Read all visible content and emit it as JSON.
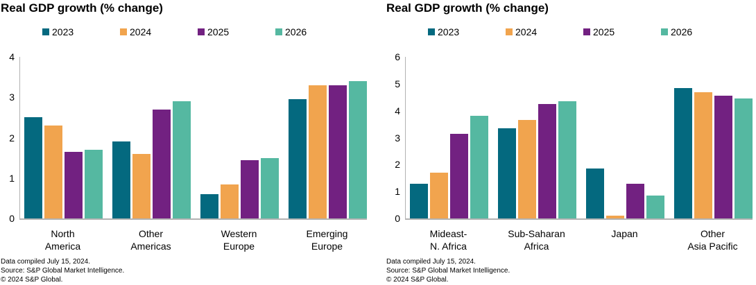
{
  "palette": {
    "axis_line": "#b2b2b2",
    "text": "#000000",
    "background": "#ffffff"
  },
  "chart_data": [
    {
      "type": "bar",
      "title": "Real GDP growth (% change)",
      "ylabel": "",
      "xlabel": "",
      "ylim": [
        0,
        4
      ],
      "yticks": [
        0,
        1,
        2,
        3,
        4
      ],
      "grid": false,
      "legend_position": "top",
      "categories": [
        "North\nAmerica",
        "Other\nAmericas",
        "Western\nEurope",
        "Emerging\nEurope"
      ],
      "series": [
        {
          "name": "2023",
          "color": "#04697f",
          "values": [
            2.5,
            1.9,
            0.6,
            2.95
          ]
        },
        {
          "name": "2024",
          "color": "#f1a44e",
          "values": [
            2.3,
            1.6,
            0.85,
            3.3
          ]
        },
        {
          "name": "2025",
          "color": "#722181",
          "values": [
            1.65,
            2.7,
            1.45,
            3.3
          ]
        },
        {
          "name": "2026",
          "color": "#55b8a1",
          "values": [
            1.7,
            2.9,
            1.5,
            3.4
          ]
        }
      ],
      "footnotes": [
        "Data compiled July 15, 2024.",
        "Source: S&P Global Market Intelligence.",
        "© 2024 S&P Global."
      ]
    },
    {
      "type": "bar",
      "title": "Real GDP growth (% change)",
      "ylabel": "",
      "xlabel": "",
      "ylim": [
        0,
        6
      ],
      "yticks": [
        0,
        1,
        2,
        3,
        4,
        5,
        6
      ],
      "grid": false,
      "legend_position": "top",
      "categories": [
        "Mideast-\nN. Africa",
        "Sub-Saharan\nAfrica",
        "Japan",
        "Other\nAsia Pacific"
      ],
      "series": [
        {
          "name": "2023",
          "color": "#04697f",
          "values": [
            1.3,
            3.35,
            1.85,
            4.85
          ]
        },
        {
          "name": "2024",
          "color": "#f1a44e",
          "values": [
            1.7,
            3.65,
            0.1,
            4.7
          ]
        },
        {
          "name": "2025",
          "color": "#722181",
          "values": [
            3.15,
            4.25,
            1.3,
            4.55
          ]
        },
        {
          "name": "2026",
          "color": "#55b8a1",
          "values": [
            3.8,
            4.35,
            0.85,
            4.45
          ]
        }
      ],
      "footnotes": [
        "Data compiled July 15, 2024.",
        "Source: S&P Global Market Intelligence.",
        "© 2024 S&P Global."
      ]
    }
  ]
}
